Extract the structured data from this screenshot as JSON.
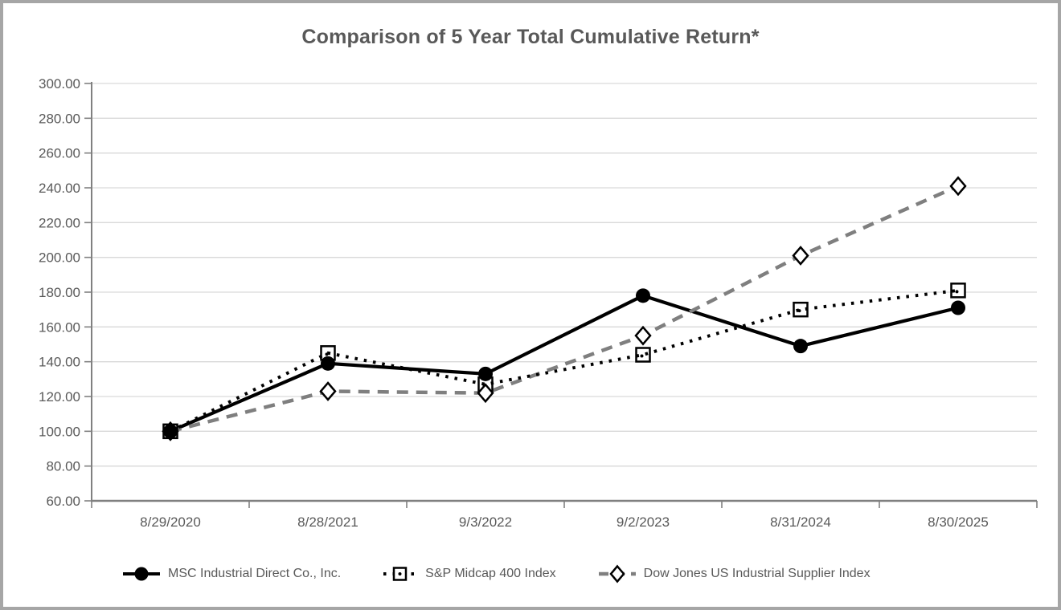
{
  "title": "Comparison of 5 Year Total Cumulative Return*",
  "chart_data": {
    "type": "line",
    "title": "Comparison of 5 Year Total Cumulative Return*",
    "categories": [
      "8/29/2020",
      "8/28/2021",
      "9/3/2022",
      "9/2/2023",
      "8/31/2024",
      "8/30/2025"
    ],
    "series": [
      {
        "name": "MSC Industrial Direct Co., Inc.",
        "values": [
          100,
          139,
          133,
          178,
          149,
          171
        ],
        "color": "#000000",
        "line_style": "solid",
        "marker": "filled-circle",
        "marker_color": "#000000"
      },
      {
        "name": "S&P Midcap 400 Index",
        "values": [
          100,
          145,
          127,
          144,
          170,
          181
        ],
        "color": "#000000",
        "line_style": "dotted",
        "marker": "open-square",
        "marker_color": "#000000"
      },
      {
        "name": "Dow Jones US Industrial Supplier Index",
        "values": [
          100,
          123,
          122,
          155,
          201,
          241
        ],
        "color": "#7f7f7f",
        "line_style": "dashed",
        "marker": "open-diamond",
        "marker_color": "#000000"
      }
    ],
    "xlabel": "",
    "ylabel": "",
    "ylim": [
      60,
      300
    ],
    "y_step": 20,
    "y_tick_labels": [
      "60.00",
      "80.00",
      "100.00",
      "120.00",
      "140.00",
      "160.00",
      "180.00",
      "200.00",
      "220.00",
      "240.00",
      "260.00",
      "280.00",
      "300.00"
    ],
    "grid": true,
    "legend_position": "bottom"
  },
  "colors": {
    "background": "#ffffff",
    "border": "#a6a6a6",
    "gridline": "#d9d9d9",
    "axis": "#808080",
    "text": "#595959",
    "series_dashed": "#7f7f7f",
    "series_black": "#000000"
  }
}
